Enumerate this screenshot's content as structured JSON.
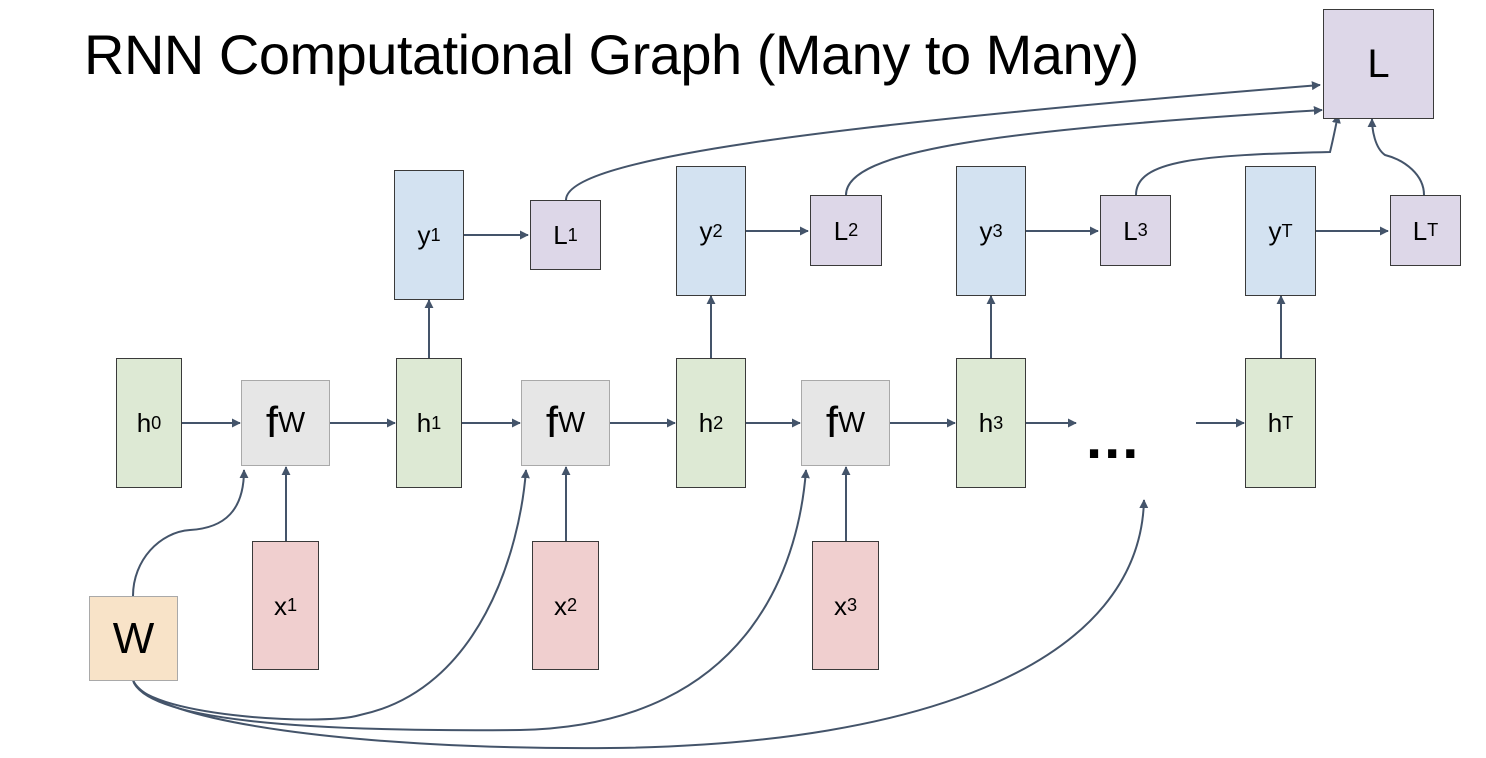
{
  "title": "RNN Computational Graph (Many to Many)",
  "ellipsis": "...",
  "nodes": {
    "h0": {
      "base": "h",
      "sub": "0"
    },
    "h1": {
      "base": "h",
      "sub": "1"
    },
    "h2": {
      "base": "h",
      "sub": "2"
    },
    "h3": {
      "base": "h",
      "sub": "3"
    },
    "hT": {
      "base": "h",
      "sub": "T"
    },
    "f1": {
      "base": "f",
      "sub": "W"
    },
    "f2": {
      "base": "f",
      "sub": "W"
    },
    "f3": {
      "base": "f",
      "sub": "W"
    },
    "x1": {
      "base": "x",
      "sub": "1"
    },
    "x2": {
      "base": "x",
      "sub": "2"
    },
    "x3": {
      "base": "x",
      "sub": "3"
    },
    "y1": {
      "base": "y",
      "sub": "1"
    },
    "y2": {
      "base": "y",
      "sub": "2"
    },
    "y3": {
      "base": "y",
      "sub": "3"
    },
    "yT": {
      "base": "y",
      "sub": "T"
    },
    "L1": {
      "base": "L",
      "sub": "1"
    },
    "L2": {
      "base": "L",
      "sub": "2"
    },
    "L3": {
      "base": "L",
      "sub": "3"
    },
    "LT": {
      "base": "L",
      "sub": "T"
    },
    "W": {
      "base": "W"
    },
    "L": {
      "base": "L"
    }
  },
  "colors": {
    "hidden": "#dde9d4",
    "output": "#d3e2f1",
    "loss": "#ddd7e8",
    "input": "#f0cfcf",
    "function": "#e6e6e6",
    "weights": "#f8e3c8",
    "arrow": "#44546a"
  }
}
